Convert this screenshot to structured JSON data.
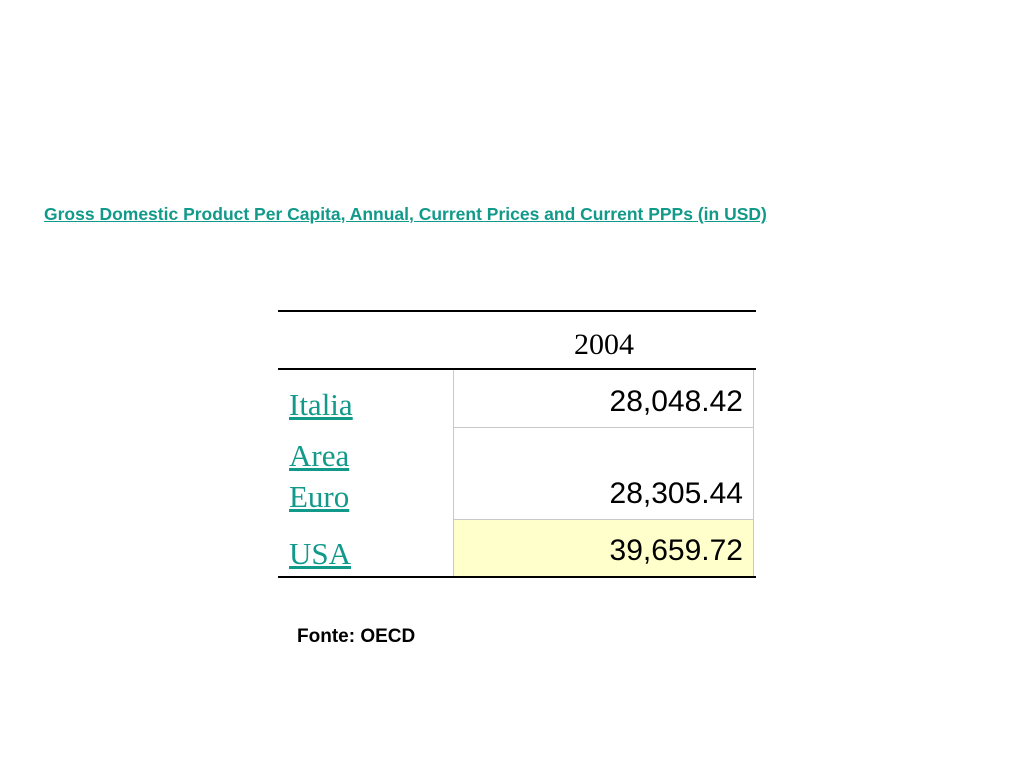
{
  "title": "Gross Domestic Product Per Capita, Annual, Current Prices and Current PPPs (in USD)",
  "table": {
    "header": "2004",
    "rows": [
      {
        "label": "Italia",
        "value": "28,048.42"
      },
      {
        "label_line1": "Area",
        "label_line2": "Euro",
        "value": "28,305.44"
      },
      {
        "label": "USA",
        "value": "39,659.72",
        "highlight": "#ffffcc"
      }
    ]
  },
  "source": "Fonte: OECD",
  "colors": {
    "link": "#11998a",
    "highlight": "#ffffcc"
  }
}
